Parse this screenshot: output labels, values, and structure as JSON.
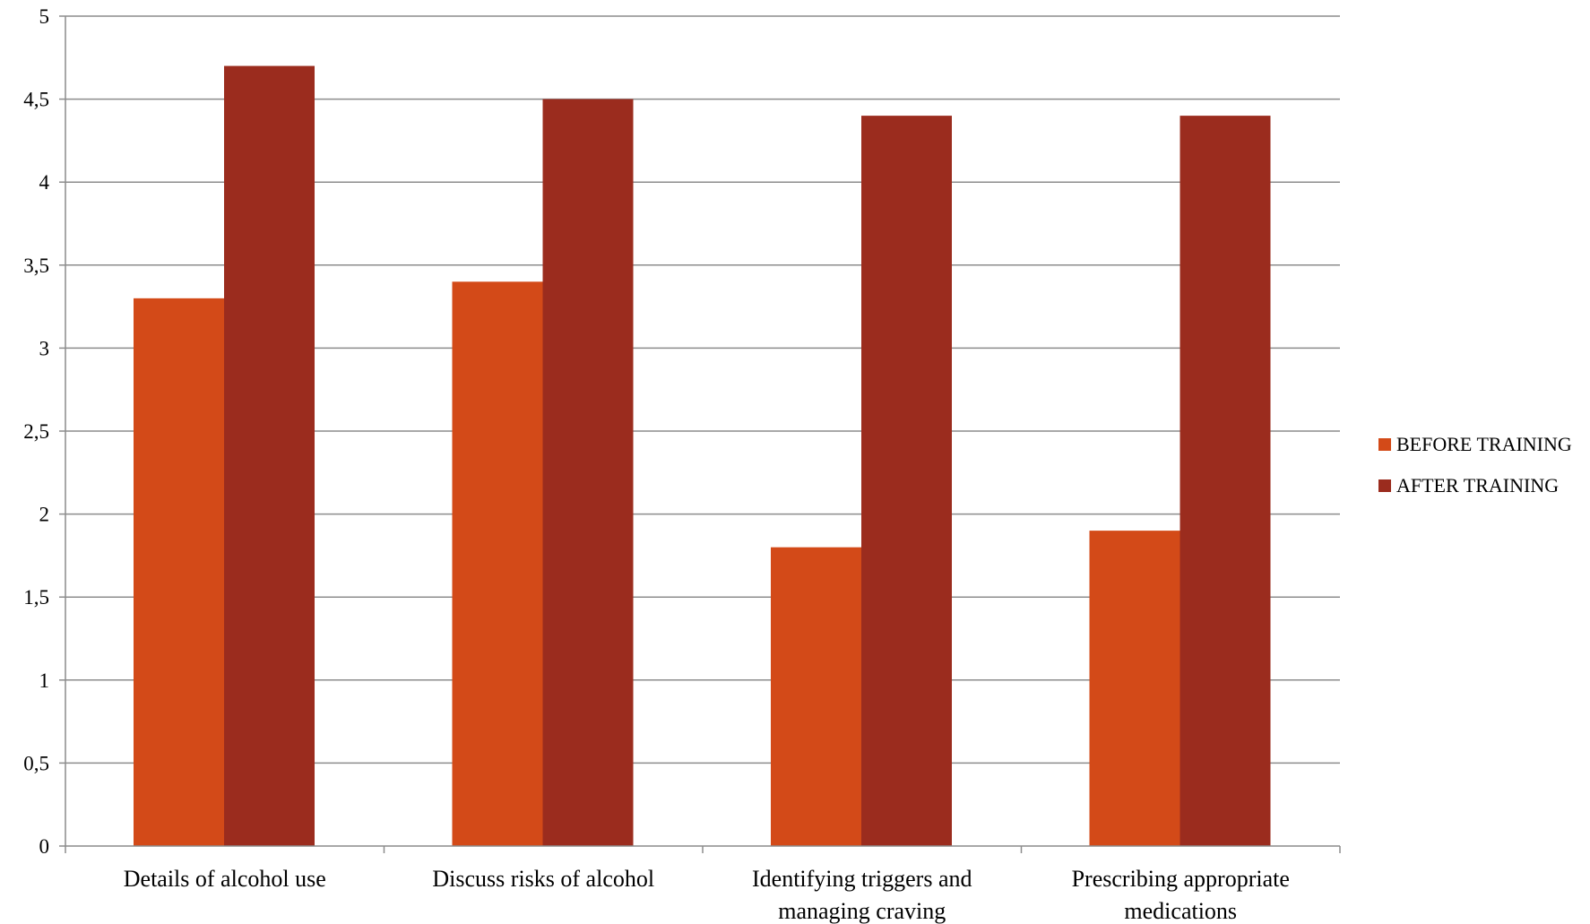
{
  "chart_data": {
    "type": "bar",
    "categories": [
      [
        "Details of alcohol use"
      ],
      [
        "Discuss risks of alcohol"
      ],
      [
        "Identifying triggers and",
        "managing craving"
      ],
      [
        "Prescribing appropriate",
        "medications"
      ]
    ],
    "series": [
      {
        "name": "BEFORE TRAINING",
        "values": [
          3.3,
          3.4,
          1.8,
          1.9
        ],
        "color": "#D34A18"
      },
      {
        "name": "AFTER TRAINING",
        "values": [
          4.7,
          4.5,
          4.4,
          4.4
        ],
        "color": "#9B2C1E"
      }
    ],
    "yticks": [
      "0",
      "0,5",
      "1",
      "1,5",
      "2",
      "2,5",
      "3",
      "3,5",
      "4",
      "4,5",
      "5"
    ],
    "ylim": [
      0,
      5
    ],
    "ystep": 0.5,
    "grid": true,
    "legend_position": "right",
    "title": "",
    "xlabel": "",
    "ylabel": ""
  }
}
